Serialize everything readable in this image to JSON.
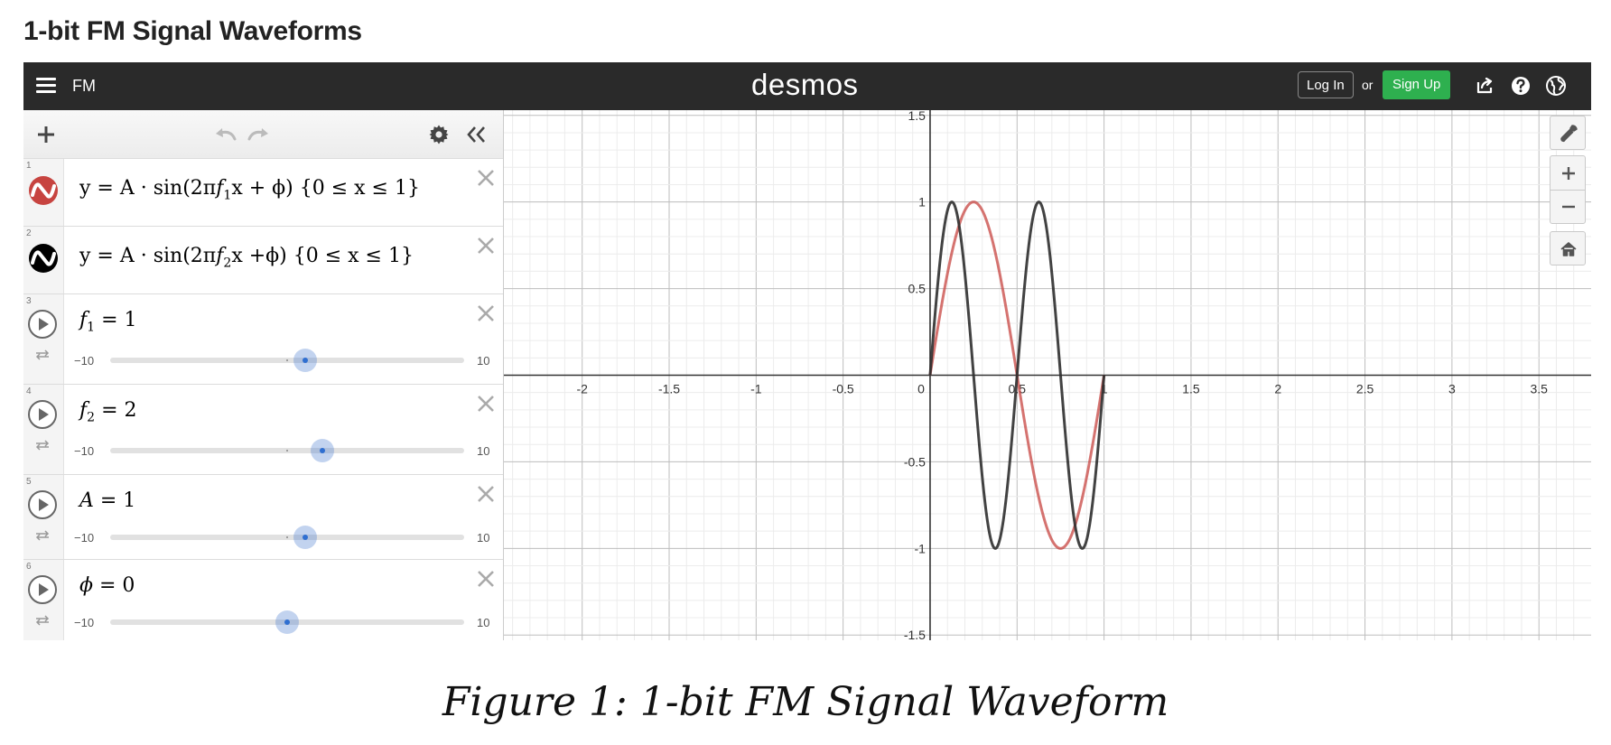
{
  "document": {
    "title": "1-bit FM Signal Waveforms",
    "caption": "Figure 1: 1-bit FM Signal Waveform"
  },
  "header": {
    "graph_name": "FM",
    "logo": "desmos",
    "login_label": "Log In",
    "or_label": "or",
    "signup_label": "Sign Up",
    "colors": {
      "background": "#2a2a2a",
      "signup": "#2eb04f"
    },
    "icons": [
      "menu-icon",
      "share-icon",
      "help-icon",
      "language-icon"
    ]
  },
  "toolbar": {
    "icons": [
      "add-icon",
      "undo-icon",
      "redo-icon",
      "settings-icon",
      "collapse-icon"
    ]
  },
  "expressions": [
    {
      "index": "1",
      "color": "#c74440",
      "prefix": "y = A · sin(2π",
      "var": "f",
      "sub": "1",
      "suffix": "x + ϕ) {0 ≤ x ≤ 1}"
    },
    {
      "index": "2",
      "color": "#000000",
      "prefix": "y = A · sin(2π",
      "var": "f",
      "sub": "2",
      "suffix": "x +ϕ) {0 ≤ x ≤ 1}"
    }
  ],
  "sliders": [
    {
      "index": "3",
      "var": "f",
      "sub": "1",
      "eq": " = 1",
      "min": "−10",
      "max": "10",
      "value": 1,
      "range": [
        -10,
        10
      ]
    },
    {
      "index": "4",
      "var": "f",
      "sub": "2",
      "eq": " = 2",
      "min": "−10",
      "max": "10",
      "value": 2,
      "range": [
        -10,
        10
      ]
    },
    {
      "index": "5",
      "var": "A",
      "sub": "",
      "eq": " = 1",
      "min": "−10",
      "max": "10",
      "value": 1,
      "range": [
        -10,
        10
      ]
    },
    {
      "index": "6",
      "var": "ϕ",
      "sub": "",
      "eq": " = 0",
      "min": "−10",
      "max": "10",
      "value": 0,
      "range": [
        -10,
        10
      ]
    }
  ],
  "graph": {
    "x_range": [
      -2.45,
      3.8
    ],
    "y_range": [
      -1.53,
      1.53
    ],
    "x_ticks": [
      "-2",
      "-1.5",
      "-1",
      "-0.5",
      "0",
      "0.5",
      "1",
      "1.5",
      "2",
      "2.5",
      "3",
      "3.5"
    ],
    "x_tick_values": [
      -2,
      -1.5,
      -1,
      -0.5,
      0,
      0.5,
      1,
      1.5,
      2,
      2.5,
      3,
      3.5
    ],
    "y_ticks": [
      "1.5",
      "1",
      "0.5",
      "-0.5",
      "-1",
      "-1.5"
    ],
    "y_tick_values": [
      1.5,
      1,
      0.5,
      -0.5,
      -1,
      -1.5
    ],
    "series": [
      {
        "color": "#c74440",
        "frequency": 1,
        "amplitude": 1,
        "phase": 0,
        "domain": [
          0,
          1
        ]
      },
      {
        "color": "#2d2d2d",
        "frequency": 2,
        "amplitude": 1,
        "phase": 0,
        "domain": [
          0,
          1
        ]
      }
    ],
    "grid": true,
    "controls": [
      "wrench-icon",
      "zoom-in-icon",
      "zoom-out-icon",
      "home-icon"
    ]
  }
}
